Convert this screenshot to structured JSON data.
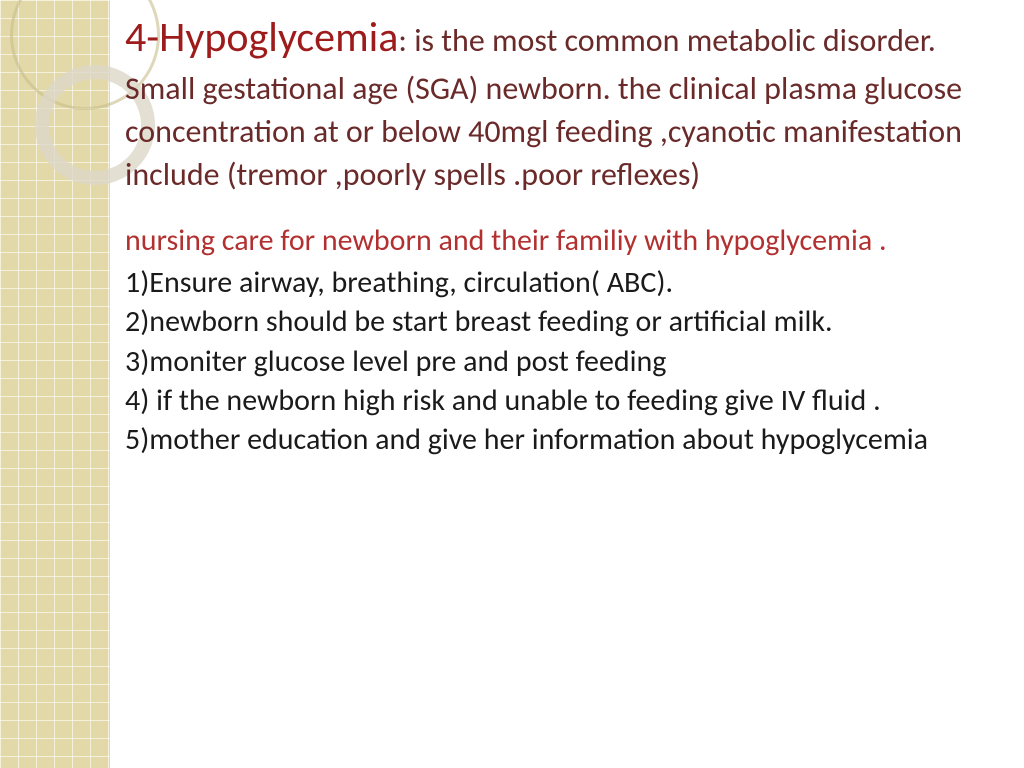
{
  "colors": {
    "sidebar_bg": "#e3d9a8",
    "title_main": "#9e1b1b",
    "title_rest": "#6b2a2a",
    "subtitle": "#b23030",
    "body": "#1a1a1a",
    "page_bg": "#ffffff"
  },
  "title": {
    "main": "4-Hypoglycemia",
    "rest": ": is the most common metabolic disorder. Small gestational age (SGA) newborn. the clinical  plasma glucose concentration at or below 40mgl feeding ,cyanotic  manifestation include (tremor ,poorly spells .poor reflexes)"
  },
  "subtitle": "nursing care for newborn and their familiy with hypoglycemia .",
  "items": [
    "1)Ensure airway, breathing, circulation( ABC).",
    "2)newborn should be start breast feeding or artificial milk.",
    "3)moniter glucose level pre and post feeding",
    "4) if the newborn high risk and unable to feeding give IV fluid .",
    "5)mother  education and give her information about hypoglycemia"
  ],
  "typography": {
    "title_main_size": 42,
    "title_rest_size": 32,
    "subtitle_size": 30,
    "body_size": 30,
    "font_family": "Gill Sans"
  }
}
